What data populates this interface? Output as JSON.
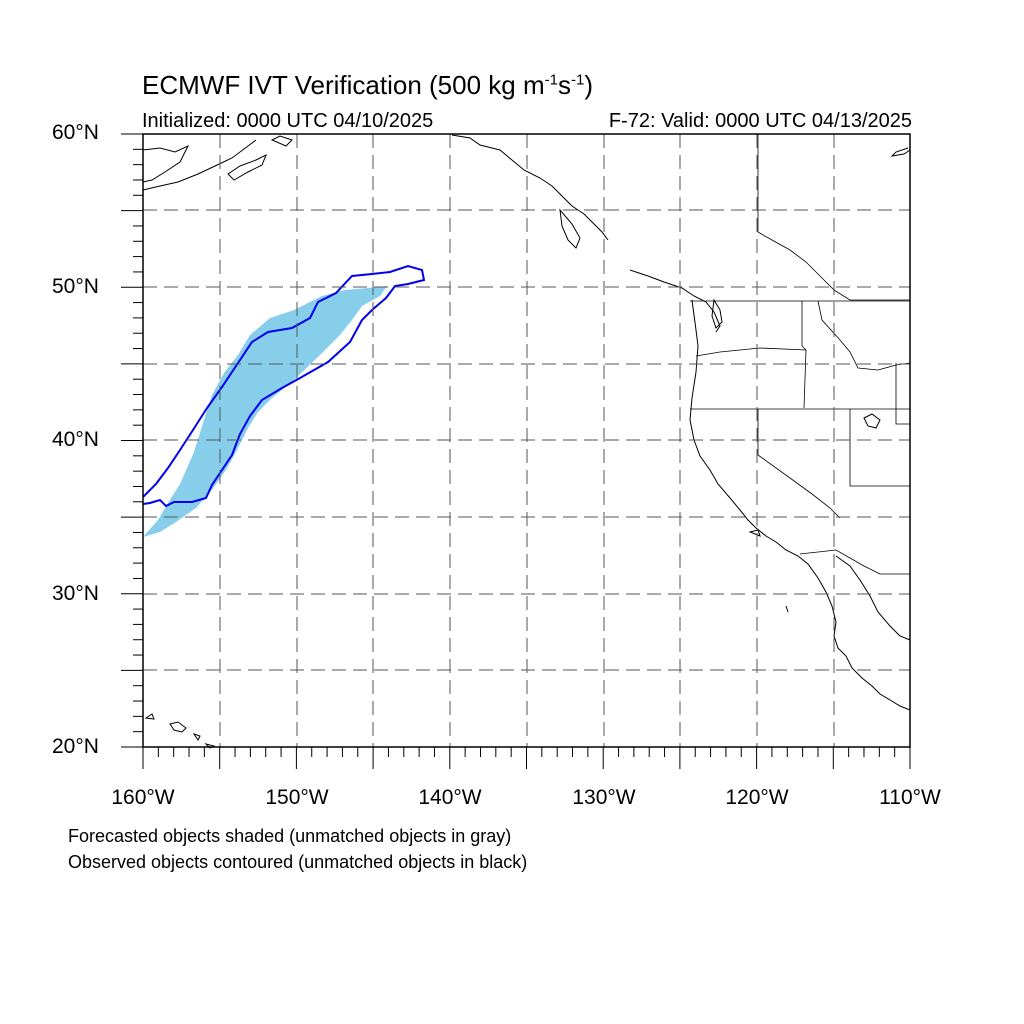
{
  "title": {
    "main": "ECMWF IVT Verification (500 kg m",
    "exp1": "-1",
    "mid": "s",
    "exp2": "-1",
    "close": ")"
  },
  "subtitle": {
    "left": "Initialized: 0000 UTC 04/10/2025",
    "right": "F-72: Valid: 0000 UTC 04/13/2025"
  },
  "axes": {
    "lat_labels": [
      "60°N",
      "50°N",
      "40°N",
      "30°N",
      "20°N"
    ],
    "lon_labels": [
      "160°W",
      "150°W",
      "140°W",
      "130°W",
      "120°W",
      "110°W"
    ],
    "lat_range": [
      20,
      60
    ],
    "lon_range": [
      -160,
      -110
    ],
    "grid": "dashed every 5 degrees"
  },
  "legend_notes": [
    "Forecasted objects shaded (unmatched objects in gray)",
    "Observed objects contoured (unmatched objects in black)"
  ],
  "colors": {
    "forecast_fill": "#87ceeb",
    "observed_contour": "#0000ee",
    "coastline": "#000000",
    "grid": "#555555"
  }
}
